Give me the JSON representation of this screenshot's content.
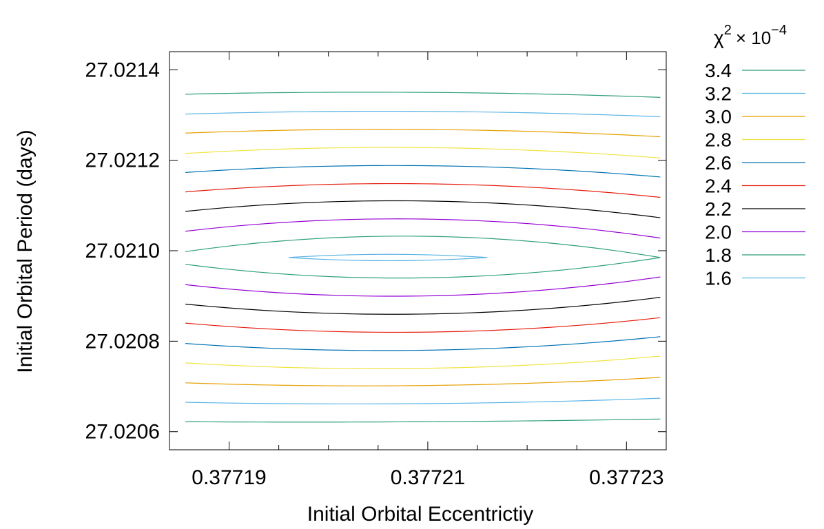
{
  "chart_data": {
    "type": "contour",
    "xlabel": "Initial Orbital Eccentrictiy",
    "ylabel": "Initial Orbital Period (days)",
    "xlim": [
      0.377184,
      0.377234
    ],
    "ylim": [
      27.02056,
      27.02144
    ],
    "x_ticks": [
      0.37719,
      0.37721,
      0.37723
    ],
    "x_tick_labels": [
      "0.37719",
      "0.37721",
      "0.37723"
    ],
    "x_minor_ticks": [
      0.377195,
      0.3772,
      0.377205,
      0.377215,
      0.37722,
      0.377225
    ],
    "y_ticks": [
      27.0206,
      27.0208,
      27.021,
      27.0212,
      27.0214
    ],
    "y_tick_labels": [
      "27.0206",
      "27.0208",
      "27.0210",
      "27.0212",
      "27.0214"
    ],
    "grid": false,
    "legend": {
      "title_base": "χ",
      "title_sup": "2",
      "title_mult": "× 10",
      "title_exp": "−4",
      "placement": "outside-top-right"
    },
    "x_range": [
      0.3771856,
      0.3772334
    ],
    "levels": [
      {
        "label": "3.4",
        "color": "#2e9e7e",
        "upper": [
          27.021346,
          27.02135,
          27.021339
        ],
        "lower": [
          27.020622,
          27.020622,
          27.020628
        ]
      },
      {
        "label": "3.2",
        "color": "#5ab4e5",
        "upper": [
          27.021302,
          27.021308,
          27.021296
        ],
        "lower": [
          27.020665,
          27.020662,
          27.020674
        ]
      },
      {
        "label": "3.0",
        "color": "#e69f00",
        "upper": [
          27.02126,
          27.021268,
          27.021252
        ],
        "lower": [
          27.020708,
          27.020702,
          27.02072
        ]
      },
      {
        "label": "2.8",
        "color": "#f0e442",
        "upper": [
          27.021215,
          27.021228,
          27.021205
        ],
        "lower": [
          27.020752,
          27.02074,
          27.020767
        ]
      },
      {
        "label": "2.6",
        "color": "#0072b2",
        "upper": [
          27.021173,
          27.021188,
          27.021163
        ],
        "lower": [
          27.020795,
          27.02078,
          27.02081
        ]
      },
      {
        "label": "2.4",
        "color": "#e51e10",
        "upper": [
          27.02113,
          27.021148,
          27.021118
        ],
        "lower": [
          27.02084,
          27.02082,
          27.020852
        ]
      },
      {
        "label": "2.2",
        "color": "#000000",
        "upper": [
          27.021087,
          27.02111,
          27.021073
        ],
        "lower": [
          27.020882,
          27.02086,
          27.020897
        ]
      },
      {
        "label": "2.0",
        "color": "#9400d3",
        "upper": [
          27.021043,
          27.02107,
          27.021028
        ],
        "lower": [
          27.020925,
          27.0209,
          27.020942
        ]
      },
      {
        "label": "1.8",
        "color": "#2e9e7e",
        "closed": true,
        "x_start": 0.3771856,
        "x_end": 0.3772334,
        "y_end": 27.020985,
        "upper": [
          27.020998,
          27.021032
        ],
        "lower": [
          27.02097,
          27.02094
        ]
      },
      {
        "label": "1.6",
        "color": "#5ab4e5",
        "closed": true,
        "x_start": 0.377196,
        "x_end": 0.377216,
        "y_end": 27.020985,
        "upper": [
          27.020985,
          27.020992
        ],
        "lower": [
          27.020985,
          27.020978
        ]
      }
    ]
  }
}
